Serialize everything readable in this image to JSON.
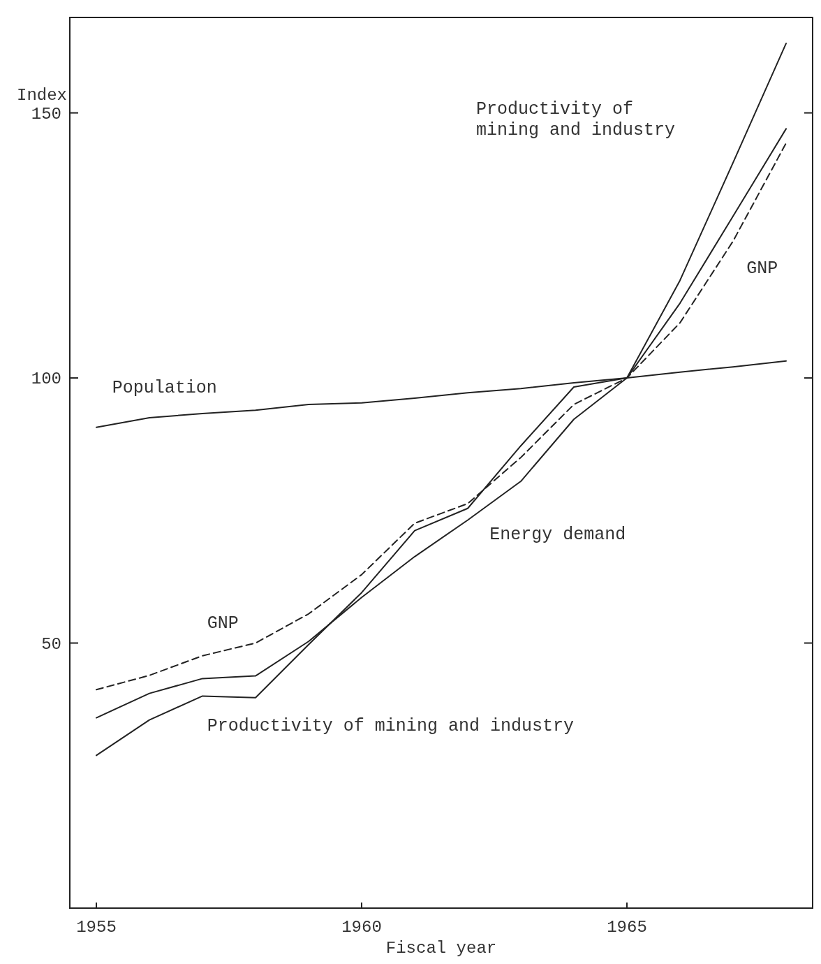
{
  "chart_data": {
    "type": "line",
    "xlabel": "Fiscal year",
    "ylabel": "Index",
    "x": [
      1955,
      1956,
      1957,
      1958,
      1959,
      1960,
      1961,
      1962,
      1963,
      1964,
      1965,
      1966,
      1967,
      1968
    ],
    "xlim": [
      1954.5,
      1968.5
    ],
    "xticks": [
      1955,
      1960,
      1965
    ],
    "ylim": [
      0,
      168
    ],
    "yticks": [
      50,
      100,
      150
    ],
    "grid": false,
    "marker": "none",
    "series": [
      {
        "color": "#222222",
        "line_style": "solid",
        "values": [
          90.7,
          92.5,
          93.3,
          93.9,
          95,
          95.3,
          96.2,
          97.2,
          98,
          99.1,
          100,
          101.1,
          102.1,
          103.2
        ]
      },
      {
        "color": "#222222",
        "line_style": "dashed",
        "values": [
          41.2,
          43.9,
          47.6,
          50,
          55.5,
          62.9,
          72.6,
          76.3,
          85,
          95,
          100,
          110.4,
          125.8,
          144.3
        ]
      },
      {
        "color": "#222222",
        "line_style": "solid",
        "values": [
          35.9,
          40.5,
          43.3,
          43.8,
          50.3,
          58.6,
          66.3,
          73.2,
          80.5,
          92.2,
          100,
          114.1,
          130.5,
          147
        ]
      },
      {
        "color": "#222222",
        "line_style": "solid",
        "values": [
          28.8,
          35.5,
          40,
          39.7,
          49.7,
          59.5,
          71.2,
          75.4,
          87.2,
          98.3,
          100,
          118.4,
          140.6,
          163.1
        ]
      }
    ],
    "annotations": [
      "Population",
      "Productivity of\nmining and industry",
      "GNP",
      "Energy demand",
      "GNP",
      "Productivity of mining and industry"
    ]
  }
}
